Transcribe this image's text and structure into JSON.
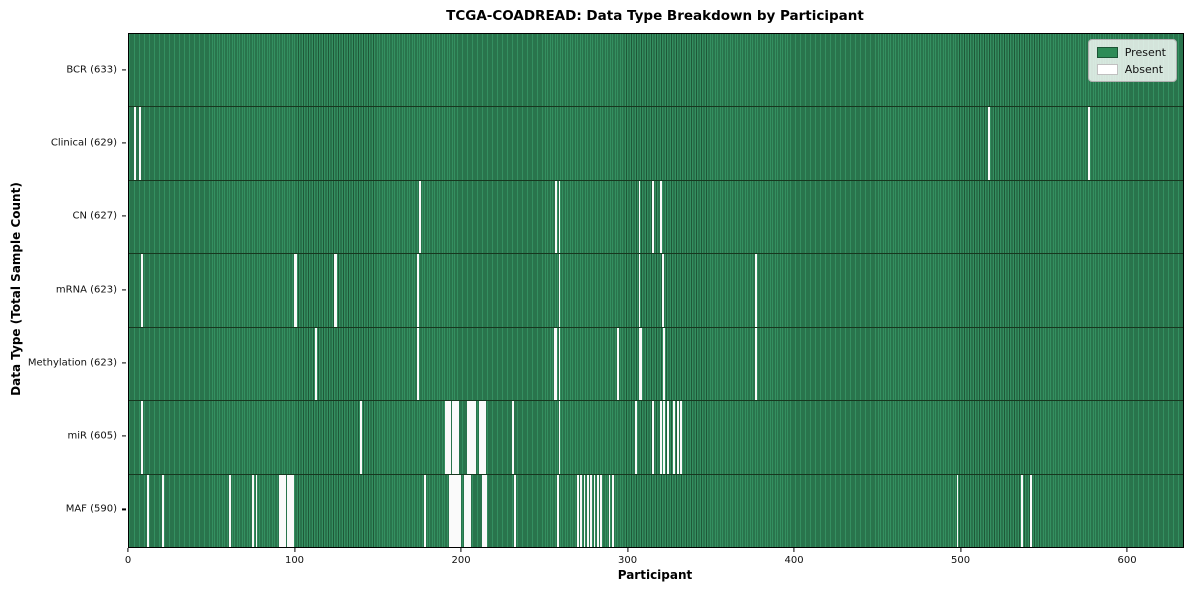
{
  "colors": {
    "present": "#2e8b57",
    "present_edge": "#1e5a38",
    "absent": "#fafafa",
    "frame": "#000000",
    "legend_border": "#b0b0b0"
  },
  "chart_data": {
    "type": "heatmap",
    "title": "TCGA-COADREAD: Data Type Breakdown by Participant",
    "xlabel": "Participant",
    "ylabel": "Data Type (Total Sample Count)",
    "legend_labels": [
      "Present",
      "Absent"
    ],
    "legend_position": "upper right",
    "n_participants": 633,
    "x_ticks": [
      0,
      100,
      200,
      300,
      400,
      500,
      600
    ],
    "rows": [
      {
        "key": "bcr",
        "label": "BCR (633)",
        "present_count": 633,
        "absent_participants": []
      },
      {
        "key": "clinical",
        "label": "Clinical (629)",
        "present_count": 629,
        "absent_participants": [
          3,
          6,
          516,
          576
        ]
      },
      {
        "key": "cn",
        "label": "CN (627)",
        "present_count": 627,
        "absent_participants": [
          174,
          256,
          258,
          306,
          314,
          319
        ]
      },
      {
        "key": "mrna",
        "label": "mRNA (623)",
        "present_count": 623,
        "absent_participants": [
          7,
          99,
          100,
          123,
          124,
          173,
          258,
          306,
          320,
          376
        ]
      },
      {
        "key": "methylation",
        "label": "Methylation (623)",
        "present_count": 623,
        "absent_participants": [
          112,
          173,
          255,
          256,
          258,
          293,
          306,
          307,
          321,
          376
        ]
      },
      {
        "key": "mir",
        "label": "miR (605)",
        "present_count": 605,
        "absent_participants": [
          7,
          139,
          190,
          191,
          192,
          194,
          195,
          196,
          197,
          203,
          204,
          205,
          206,
          207,
          210,
          211,
          212,
          213,
          230,
          258,
          304,
          314,
          319,
          321,
          323,
          327,
          329,
          331
        ]
      },
      {
        "key": "maf",
        "label": "MAF (590)",
        "present_count": 590,
        "absent_participants": [
          11,
          20,
          60,
          74,
          76,
          90,
          91,
          92,
          93,
          95,
          96,
          97,
          98,
          177,
          192,
          193,
          194,
          195,
          196,
          197,
          198,
          201,
          202,
          203,
          204,
          212,
          213,
          214,
          231,
          257,
          269,
          271,
          273,
          275,
          277,
          279,
          281,
          283,
          288,
          290,
          497,
          536,
          541
        ]
      }
    ]
  }
}
